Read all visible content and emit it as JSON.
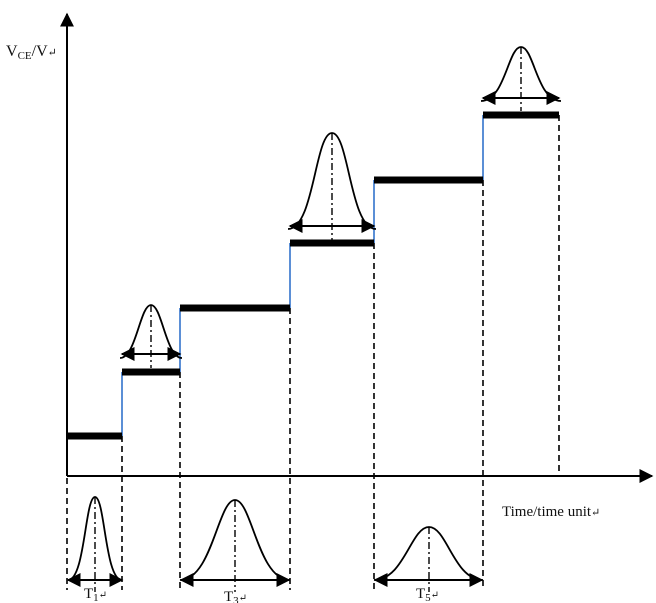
{
  "y_axis_label_main": "V",
  "y_axis_label_sub": "CE",
  "y_axis_label_rest": "/V",
  "x_axis_label": "Time/time unit",
  "period_labels": [
    {
      "main": "T",
      "sub": "1"
    },
    {
      "main": "T",
      "sub": "3"
    },
    {
      "main": "T",
      "sub": "5"
    }
  ],
  "return_mark": "↵"
}
